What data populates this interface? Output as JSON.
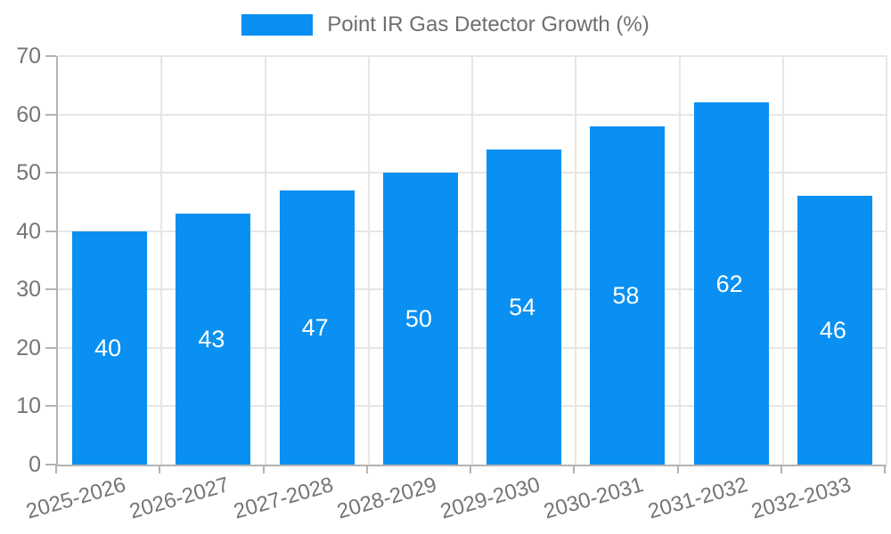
{
  "chart_data": {
    "type": "bar",
    "legend": "Point IR Gas Detector Growth (%)",
    "legend_position": "top-center",
    "categories": [
      "2025-2026",
      "2026-2027",
      "2027-2028",
      "2028-2029",
      "2029-2030",
      "2030-2031",
      "2031-2032",
      "2032-2033"
    ],
    "values": [
      40,
      43,
      47,
      50,
      54,
      58,
      62,
      46
    ],
    "yticks": [
      0,
      10,
      20,
      30,
      40,
      50,
      60,
      70
    ],
    "ylim": [
      0,
      70
    ],
    "xlabel": "",
    "ylabel": "",
    "grid": true,
    "bar_labels_inside": true,
    "colors": {
      "bar": "#0990f2",
      "grid": "#e6e6e6",
      "axis": "#b3b3b3",
      "tick_text": "#757575",
      "legend_text": "#6e6e6e",
      "bar_label": "#ffffff",
      "background": "#ffffff"
    }
  }
}
